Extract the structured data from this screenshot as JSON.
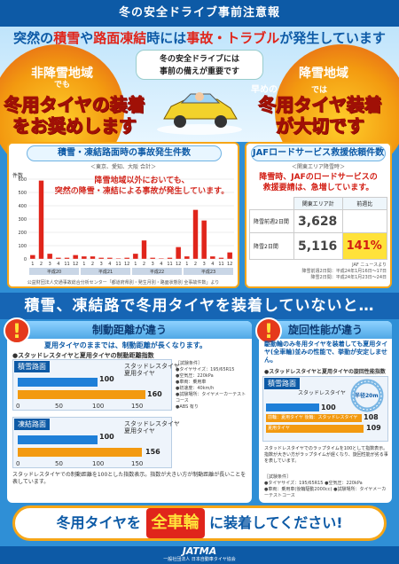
{
  "header": {
    "title": "冬の安全ドライブ事前注意報"
  },
  "subtitle": {
    "p1": "突然の",
    "k1": "積雪",
    "p2": "や",
    "k2": "路面凍結",
    "p3": "時には",
    "k3": "事故・トラブル",
    "p4": "が発生しています"
  },
  "bubble": {
    "line1": "冬の安全ドライブには",
    "line2": "事前の備えが重要です"
  },
  "left_sun": {
    "area": "非降雪地域",
    "dechi": "でも",
    "line1": "冬用タイヤの装着",
    "line2": "をお奨めします"
  },
  "right_sun": {
    "prefix": "早めの",
    "area": "降雪地域",
    "dechi": "では",
    "line1": "冬用タイヤ装着",
    "line2": "が大切です"
  },
  "accidents": {
    "title": "積雪・凍結路面時の事故発生件数",
    "subtitle": "＜東京、愛知、大阪 合計＞",
    "ylabel": "件数",
    "note_line1": "降雪地域以外においても、",
    "note_line2": "突然の降雪・凍結による事故が発生しています。",
    "source": "公益財団法人交通事故総合分析センター「都道府県別・発生月別・路面状態別 全事故件数」より",
    "year_labels": [
      "平成20",
      "平成21",
      "平成22",
      "平成23"
    ]
  },
  "chart_data": {
    "type": "bar",
    "categories": [
      "1",
      "2",
      "3",
      "4",
      "11",
      "12",
      "1",
      "2",
      "3",
      "4",
      "11",
      "12",
      "1",
      "2",
      "3",
      "4",
      "11",
      "12",
      "1",
      "2",
      "3",
      "4",
      "11",
      "12"
    ],
    "values": [
      30,
      590,
      40,
      10,
      10,
      30,
      20,
      20,
      10,
      10,
      5,
      10,
      40,
      140,
      10,
      5,
      10,
      90,
      20,
      370,
      290,
      20,
      10,
      50
    ],
    "ylim": [
      0,
      600
    ],
    "yticks": [
      0,
      100,
      200,
      300,
      400,
      500,
      600
    ],
    "ylabel": "件数",
    "title": "積雪・凍結路面時の事故発生件数"
  },
  "jaf": {
    "title": "JAFロードサービス救援依頼件数",
    "subtitle": "＜関東エリア降雪時＞",
    "note_line1": "降雪時、JAFのロードサービスの",
    "note_line2": "救援要請は、急増しています。",
    "col1": "関東エリア計",
    "col2": "前週比",
    "row1_label": "降雪前週2日間",
    "row1_value": "3,628",
    "row2_label": "降雪2日間",
    "row2_value": "5,116",
    "row2_ratio": "141%",
    "source1": "JAF ニュースより",
    "source2": "降雪前週2日間：平成24年1月16日〜17日",
    "source3": "降雪2日間：平成24年1月23日〜24日"
  },
  "banner": {
    "text": "積雪、凍結路で冬用タイヤを装着していないと…"
  },
  "braking": {
    "title": "制動距離が違う",
    "desc": "夏用タイヤのままでは、制動距離が長くなります。",
    "subtitle": "●スタッドレスタイヤと夏用タイヤの制動距離指数",
    "panel1": {
      "surface": "積雪路面",
      "studless": "スタッドレスタイヤ",
      "summer": "夏用タイヤ",
      "val1": "100",
      "val2": "160",
      "axis": [
        "0",
        "50",
        "100",
        "150"
      ],
      "unit": "(指数)",
      "short": "短い",
      "long": "長い"
    },
    "panel2": {
      "surface": "凍結路面",
      "studless": "スタッドレスタイヤ",
      "summer": "夏用タイヤ",
      "val1": "100",
      "val2": "156",
      "axis": [
        "0",
        "50",
        "100",
        "150"
      ],
      "unit": "(指数)",
      "short": "短い",
      "long": "長い"
    },
    "conditions": "［試験条件］\n●タイヤサイズ：195/65R15\n●空気圧：220kPa\n●車両：乗用車\n●初速度：40km/h\n●試験場所：タイヤメーカーテストコース\n●ABS 有り",
    "footnote": "スタッドレスタイヤでの制動距離を100とした指数表示。指数が大きい方が制動距離が長いことを表しています。"
  },
  "turning": {
    "title": "旋回性能が違う",
    "desc": "駆動輪のみ冬用タイヤを装着しても夏用タイヤ(全車輪)並みの性能で、挙動が安定しません。",
    "subtitle": "●スタッドレスタイヤと夏用タイヤの旋回性能指数",
    "surface": "積雪路面",
    "legend1": "スタッドレスタイヤ",
    "legend2": "前輪：夏用タイヤ 後輪：スタッドレスタイヤ",
    "legend3": "夏用タイヤ",
    "val1": "100",
    "val2": "108",
    "val3": "109",
    "radius": "半径20m",
    "footnote": "スタッドレスタイヤでのラップタイムを100として指数表示。指数が大きい方がラップタイムが遅くなり、旋回性能が劣る事を表しています。",
    "conditions": "［試験条件］\n●タイヤサイズ：195/65R15  ●空気圧：220kPa\n●車両：乗用車(後輪駆動2000cc)  ●試験場所：タイヤメーカーテストコース"
  },
  "bottom": {
    "p1": "冬用タイヤを",
    "k": "全車輪",
    "p2": "に装着してください!"
  },
  "footer": {
    "brand": "JATMA",
    "sub": "一般社団法人 日本自動車タイヤ協会"
  }
}
